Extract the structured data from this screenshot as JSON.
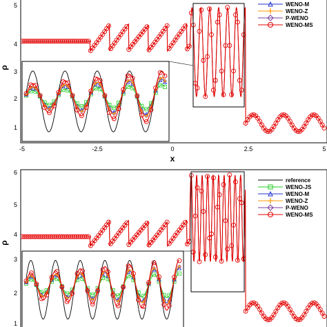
{
  "chart_data": [
    {
      "type": "line",
      "panel": "top",
      "xlabel": "x",
      "ylabel": "ρ",
      "xlim": [
        -5,
        5
      ],
      "ylim": [
        0.5,
        5.4
      ],
      "xticks": [
        "-5",
        "-2.5",
        "0",
        "2.5",
        "5"
      ],
      "yticks": [
        "1",
        "2",
        "3",
        "4",
        "5"
      ],
      "legend_position": "top-right",
      "legend_entries": [
        "WENO-M",
        "WENO-Z",
        "P-WENO",
        "WENO-MS"
      ],
      "colors": {
        "reference": "#000000",
        "WENO-JS": "#22cc22",
        "WENO-M": "#2233cc",
        "WENO-Z": "#ff9900",
        "P-WENO": "#7a3fa0",
        "WENO-MS": "#e60000"
      },
      "zoom_box": {
        "x": [
          0.7,
          2.35
        ],
        "y": [
          1.75,
          4.95
        ]
      },
      "inset_box": {
        "x": [
          -4.95,
          -0.1
        ],
        "y": [
          0.6,
          3.4
        ]
      },
      "series": [
        {
          "name": "WENO-MS",
          "x": [
            -5,
            -4.5,
            -4.0,
            -3.5,
            -3.0,
            -2.7,
            -2.5,
            -2.2,
            -1.8,
            -1.5,
            -1.2,
            -0.9,
            -0.6,
            -0.3,
            0,
            0.3,
            0.5,
            0.7,
            1.0,
            1.3,
            1.6,
            1.9,
            2.2,
            2.4,
            2.5,
            3.0,
            3.5,
            4.0,
            4.5,
            5.0
          ],
          "y": [
            3.85,
            3.85,
            3.85,
            3.85,
            3.85,
            3.86,
            3.5,
            4.3,
            3.6,
            4.4,
            3.7,
            4.5,
            3.8,
            4.5,
            3.9,
            4.4,
            3.6,
            4.2,
            3.8,
            4.4,
            3.9,
            4.5,
            3.9,
            4.2,
            1.3,
            0.9,
            1.4,
            0.9,
            1.4,
            1.1
          ]
        }
      ]
    },
    {
      "type": "line",
      "panel": "bottom",
      "xlabel": "",
      "ylabel": "ρ",
      "xlim": [
        -5,
        5
      ],
      "ylim": [
        0.7,
        6.2
      ],
      "yticks": [
        "1",
        "2",
        "3",
        "4",
        "5",
        "6"
      ],
      "legend_position": "top-right",
      "legend_entries": [
        "reference",
        "WENO-JS",
        "WENO-M",
        "WENO-Z",
        "P-WENO",
        "WENO-MS"
      ],
      "zoom_box": {
        "x": [
          0.5,
          2.45
        ],
        "y": [
          2.7,
          6.0
        ]
      },
      "inset_box": {
        "x": [
          -4.95,
          0.3
        ],
        "y": [
          0.7,
          3.25
        ]
      },
      "series": [
        {
          "name": "WENO-MS",
          "x": [
            -5,
            -4.5,
            -4.0,
            -3.5,
            -3.0,
            -2.7,
            -2.5,
            -2.2,
            -1.8,
            -1.5,
            -1.2,
            -0.9,
            -0.6,
            -0.3,
            0,
            0.3,
            0.6,
            1.0,
            1.4,
            1.8,
            2.2,
            2.5,
            3.0,
            3.5,
            4.0,
            4.5,
            5.0
          ],
          "y": [
            3.85,
            3.85,
            3.85,
            3.85,
            3.85,
            3.86,
            3.6,
            4.3,
            3.7,
            4.4,
            3.8,
            4.5,
            3.9,
            4.5,
            3.8,
            4.3,
            3.8,
            4.8,
            3.2,
            5.7,
            3.0,
            1.2,
            1.5,
            1.0,
            1.5,
            1.0,
            1.5
          ]
        }
      ]
    }
  ]
}
